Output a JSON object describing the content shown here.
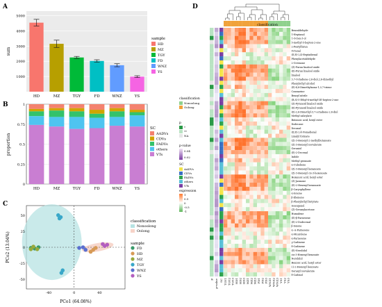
{
  "panels": {
    "a": "A",
    "b": "B",
    "c": "C",
    "d": "D"
  },
  "chart_data": [
    {
      "id": "A",
      "type": "bar",
      "categories": [
        "HD",
        "MZ",
        "TGY",
        "FD",
        "WNZ",
        "YS"
      ],
      "values": [
        4540,
        3150,
        2250,
        2020,
        1740,
        990
      ],
      "errors": [
        220,
        240,
        70,
        80,
        100,
        60
      ],
      "ylabel": "sum",
      "ylim": [
        0,
        5300
      ],
      "yticks": [
        1000,
        2000,
        3000,
        4000,
        5000
      ],
      "legend_title": "sample",
      "legend": [
        "HD",
        "MZ",
        "TGY",
        "FD",
        "WNZ",
        "YS"
      ],
      "colors": [
        "#f8766d",
        "#b79f00",
        "#00ba38",
        "#00bfc4",
        "#619cff",
        "#f564e3"
      ],
      "grid": true
    },
    {
      "id": "B",
      "type": "bar",
      "stacked": true,
      "categories": [
        "HD",
        "MZ",
        "TGY",
        "FD",
        "WNZ",
        "YS"
      ],
      "series": [
        {
          "name": "AADVs",
          "color": "#f4826f",
          "values": [
            0.06,
            0.05,
            0.05,
            0.07,
            0.05,
            0.07
          ]
        },
        {
          "name": "CDVs",
          "color": "#d0a500",
          "values": [
            0.03,
            0.03,
            0.04,
            0.05,
            0.04,
            0.03
          ]
        },
        {
          "name": "FADVs",
          "color": "#33c26b",
          "values": [
            0.06,
            0.08,
            0.07,
            0.05,
            0.07,
            0.04
          ]
        },
        {
          "name": "others",
          "color": "#4fc4f0",
          "values": [
            0.11,
            0.12,
            0.15,
            0.13,
            0.11,
            0.14
          ]
        },
        {
          "name": "VTs",
          "color": "#c97ed2",
          "values": [
            0.74,
            0.72,
            0.69,
            0.7,
            0.73,
            0.72
          ]
        }
      ],
      "ylabel": "proportion",
      "ylim": [
        0,
        1
      ],
      "yticks": [
        0,
        0.25,
        0.5,
        0.75,
        1
      ],
      "legend_title": "SC"
    },
    {
      "id": "C",
      "type": "scatter",
      "xlabel": "PCo1 (64.08%)",
      "ylabel": "PCo2 (13.04%)",
      "xlim": [
        -75,
        80
      ],
      "ylim": [
        -65,
        65
      ],
      "xticks": [
        -40,
        0,
        40
      ],
      "yticks": [
        -50,
        -25,
        0,
        25,
        50
      ],
      "sample_legend_title": "sample",
      "class_legend_title": "classification",
      "classes": [
        {
          "name": "Nonoolong",
          "color": "#b7e3e3"
        },
        {
          "name": "Oolong",
          "color": "#f6d3c8"
        }
      ],
      "series": [
        {
          "name": "FD",
          "color": "#3a9a6a",
          "points": [
            [
              -56,
              0
            ],
            [
              -62,
              -2
            ],
            [
              -68,
              -1
            ]
          ]
        },
        {
          "name": "HD",
          "color": "#d79a56",
          "points": [
            [
              30,
              -4
            ],
            [
              34,
              -1
            ],
            [
              26,
              -7
            ]
          ]
        },
        {
          "name": "MZ",
          "color": "#98a93c",
          "points": [
            [
              -58,
              -3
            ],
            [
              -64,
              1
            ],
            [
              -68,
              -3
            ]
          ]
        },
        {
          "name": "TGY",
          "color": "#3aa8c9",
          "points": [
            [
              -25,
              50
            ],
            [
              -21,
              47
            ],
            [
              -23,
              45
            ]
          ]
        },
        {
          "name": "WNZ",
          "color": "#5a6fd0",
          "points": [
            [
              8,
              -1
            ],
            [
              14,
              0
            ],
            [
              18,
              -4
            ]
          ]
        },
        {
          "name": "YS",
          "color": "#b35fbf",
          "points": [
            [
              48,
              2
            ],
            [
              52,
              4
            ],
            [
              45,
              5
            ]
          ]
        },
        {
          "name": "TGY",
          "color": "#3aa8c9",
          "points": [
            [
              -18,
              -36
            ],
            [
              -20,
              -40
            ]
          ]
        }
      ]
    },
    {
      "id": "D",
      "type": "heatmap",
      "columns": [
        "TGY1",
        "TGY2",
        "TGY3",
        "HD1",
        "HD2",
        "HD3",
        "MZ1",
        "MZ2",
        "MZ3",
        "FD1",
        "FD2",
        "FD3",
        "WNZ1",
        "WNZ2",
        "WNZ3",
        "YS1",
        "YS2",
        "YS3"
      ],
      "column_classes": [
        "Oolong",
        "Oolong",
        "Oolong",
        "Oolong",
        "Oolong",
        "Oolong",
        "Oolong",
        "Oolong",
        "Oolong",
        "Oolong",
        "Oolong",
        "Oolong",
        "Nonoolong",
        "Nonoolong",
        "Nonoolong",
        "Nonoolong",
        "Nonoolong",
        "Nonoolong"
      ],
      "annotation_rows": [
        "p",
        "p-value",
        "SC"
      ],
      "rows": [
        "Benzaldehyde",
        "1-Heptanol",
        "1-Octen-3-ol",
        "5-methyl-5-hepten-2-one",
        "2-Pentylfuran",
        "Octanal",
        "(E,E)-2,4-Heptadienal",
        "Phenylacetaldehyde",
        "2-Octenone",
        "(Z)-Furan linalool oxide",
        "(E)-Furan linalool oxide",
        "linalool",
        "3,7-Octadiene-2,6-diol,2,6-dimethyl",
        "Phenylethyl alcohol",
        "(E)-4,8-Dimethylnona-1,3,7-triene",
        "Coumarine",
        "Benzyl nitrile",
        "(R,S)-5-Ethyl-6-methyl-3E-hepten-2-one",
        "(Z)-Pyranoid linalool oxide",
        "(E)-Pyranoid linalool oxide",
        "(E)-2,6-Dimethyl-3,7-octadiene-2,6-diol",
        "Methyl salicylate",
        "Butanoic acid, hexyl ester",
        "Dodecane",
        "Decanal",
        "(E,E)-2,4-Nonadienal",
        "Linalyl formate",
        "(Z)-3-Hexenyl-2-methylbutanoate",
        "(Z)-3-Hexenyl isovalerate",
        "Geraniol",
        "(E)-2-Decenal",
        "Indole",
        "Methyl geranate",
        "α-Cubebene",
        "(Z)-3-Hexenyl hexanoate",
        "(Z)-3-Hexenyl cis-3-hexenoate",
        "Hexanoic acid, hexyl ester",
        "(Z)-Jasmone",
        "(E)-2-Hexenyl hexanoate",
        "β-Caryophyllene",
        "α-Ionone",
        "β-Elemene",
        "β-Phenylethyl butyrate",
        "Isoeugenol",
        "(Z)-Geranylacetone",
        "Humulene",
        "(E)-β-Farnesene",
        "(E)-2-Dodecenal",
        "β-Ionone",
        "α-·α-Farnesene",
        "α-Muurolene",
        "α-Farnesene",
        "γ-Cadinene",
        "δ-Cadinene",
        "(E)-Nerolidol",
        "cis-3-Hexenyl benzoate",
        "Nerolidol",
        "Benzoic acid, hexyl ester",
        "(-)-2-Hexenyl benzoate",
        "Geranyl isovalerate",
        "δ-Cadinol"
      ],
      "legends": {
        "classification": {
          "title": "classification",
          "items": [
            {
              "name": "Nonoolong",
              "color": "#8fd18d"
            },
            {
              "name": "Oolong",
              "color": "#f0a23b"
            }
          ]
        },
        "p": {
          "title": "p",
          "items": [
            {
              "name": "*",
              "color": "#2a9a48"
            },
            {
              "name": "**",
              "color": "#b9e3c3"
            },
            {
              "name": "NA",
              "color": "#e6e6e6"
            }
          ]
        },
        "pvalue": {
          "title": "p-value",
          "ticks": [
            "0.04",
            "0.02"
          ]
        },
        "SC": {
          "title": "SC",
          "items": [
            {
              "name": "AADVs",
              "color": "#f4e54a"
            },
            {
              "name": "CDVs",
              "color": "#3a6fc2"
            },
            {
              "name": "FADVs",
              "color": "#2fa44f"
            },
            {
              "name": "others",
              "color": "#58c0d8"
            },
            {
              "name": "VTs",
              "color": "#7b3fa3"
            }
          ]
        },
        "expression": {
          "title": "expression",
          "ticks": [
            "1",
            "0.5",
            "0",
            "-0.5",
            "-1"
          ]
        }
      }
    }
  ]
}
